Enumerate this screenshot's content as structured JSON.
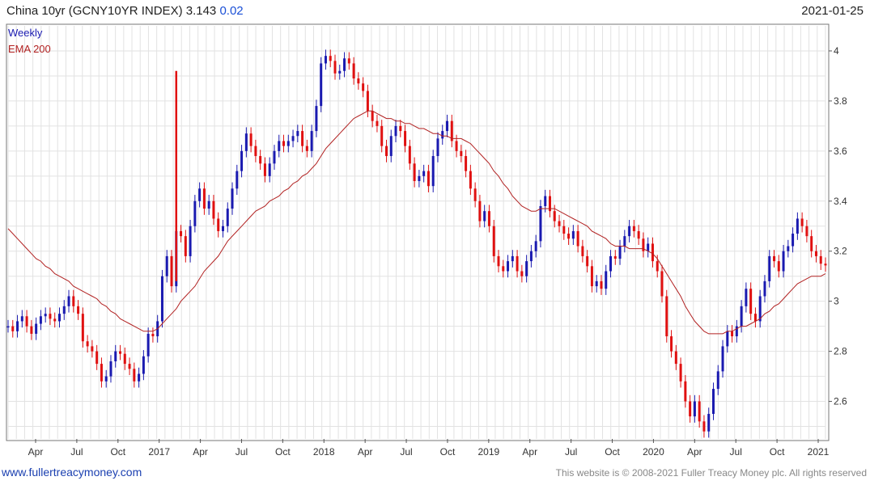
{
  "header": {
    "title": "China 10yr (GCNY10YR INDEX) 3.143",
    "change": "0.02",
    "date": "2021-01-25"
  },
  "footer": {
    "site": "www.fullertreacymoney.com",
    "copyright": "This website is © 2008-2021 Fuller Treacy Money plc. All rights reserved"
  },
  "colors": {
    "up": "#1a1ab0",
    "down": "#e01010",
    "ema": "#b22222",
    "grid": "#e2e2e2"
  },
  "chart_data": {
    "type": "line",
    "legend": [
      "Weekly",
      "EMA 200"
    ],
    "legend_placement": "top-left",
    "grid": true,
    "ylim": [
      2.45,
      4.1
    ],
    "y_ticks": [
      2.6,
      2.8,
      3,
      3.2,
      3.4,
      3.6,
      3.8,
      4
    ],
    "y_tick_labels": [
      "2.6",
      "2.8",
      "3",
      "3.2",
      "3.4",
      "3.6",
      "3.8",
      "4"
    ],
    "x_tick_labels": [
      "Apr",
      "Jul",
      "Oct",
      "2017",
      "Apr",
      "Jul",
      "Oct",
      "2018",
      "Apr",
      "Jul",
      "Oct",
      "2019",
      "Apr",
      "Jul",
      "Oct",
      "2020",
      "Apr",
      "Jul",
      "Oct",
      "2021"
    ],
    "series": [
      {
        "name": "Weekly",
        "y": [
          2.9,
          2.88,
          2.92,
          2.94,
          2.9,
          2.87,
          2.91,
          2.94,
          2.95,
          2.93,
          2.92,
          2.95,
          2.98,
          3.02,
          2.98,
          2.95,
          2.84,
          2.82,
          2.8,
          2.75,
          2.68,
          2.7,
          2.76,
          2.8,
          2.79,
          2.75,
          2.73,
          2.68,
          2.71,
          2.78,
          2.87,
          2.86,
          2.92,
          3.1,
          3.18,
          3.06,
          3.28,
          3.26,
          3.18,
          3.3,
          3.4,
          3.45,
          3.37,
          3.4,
          3.33,
          3.28,
          3.3,
          3.37,
          3.45,
          3.52,
          3.6,
          3.67,
          3.62,
          3.58,
          3.55,
          3.5,
          3.55,
          3.6,
          3.64,
          3.62,
          3.64,
          3.66,
          3.68,
          3.62,
          3.6,
          3.68,
          3.78,
          3.95,
          3.98,
          3.96,
          3.91,
          3.92,
          3.97,
          3.95,
          3.89,
          3.87,
          3.84,
          3.76,
          3.72,
          3.7,
          3.62,
          3.58,
          3.66,
          3.7,
          3.68,
          3.62,
          3.55,
          3.48,
          3.5,
          3.52,
          3.46,
          3.58,
          3.65,
          3.68,
          3.72,
          3.64,
          3.6,
          3.58,
          3.52,
          3.45,
          3.4,
          3.32,
          3.36,
          3.3,
          3.18,
          3.14,
          3.12,
          3.16,
          3.18,
          3.12,
          3.1,
          3.16,
          3.2,
          3.24,
          3.38,
          3.42,
          3.36,
          3.32,
          3.3,
          3.27,
          3.25,
          3.28,
          3.22,
          3.18,
          3.14,
          3.06,
          3.08,
          3.05,
          3.12,
          3.18,
          3.17,
          3.22,
          3.26,
          3.3,
          3.28,
          3.25,
          3.2,
          3.23,
          3.16,
          3.12,
          3.02,
          2.86,
          2.8,
          2.75,
          2.68,
          2.6,
          2.54,
          2.6,
          2.52,
          2.48,
          2.55,
          2.65,
          2.72,
          2.82,
          2.88,
          2.86,
          2.9,
          2.98,
          3.05,
          2.95,
          2.92,
          3.02,
          3.08,
          3.18,
          3.16,
          3.12,
          3.2,
          3.22,
          3.27,
          3.33,
          3.3,
          3.26,
          3.2,
          3.18,
          3.15,
          3.143
        ]
      },
      {
        "name": "EMA 200",
        "y": [
          3.29,
          3.27,
          3.25,
          3.23,
          3.21,
          3.19,
          3.17,
          3.16,
          3.14,
          3.13,
          3.11,
          3.1,
          3.09,
          3.08,
          3.06,
          3.05,
          3.04,
          3.03,
          3.02,
          3.01,
          2.99,
          2.98,
          2.96,
          2.95,
          2.93,
          2.92,
          2.91,
          2.9,
          2.89,
          2.88,
          2.88,
          2.88,
          2.89,
          2.91,
          2.93,
          2.95,
          2.97,
          3.0,
          3.02,
          3.04,
          3.06,
          3.09,
          3.12,
          3.14,
          3.16,
          3.18,
          3.21,
          3.24,
          3.26,
          3.28,
          3.3,
          3.32,
          3.34,
          3.36,
          3.37,
          3.38,
          3.4,
          3.41,
          3.42,
          3.44,
          3.45,
          3.47,
          3.48,
          3.5,
          3.51,
          3.53,
          3.55,
          3.58,
          3.61,
          3.63,
          3.65,
          3.67,
          3.69,
          3.71,
          3.73,
          3.74,
          3.75,
          3.76,
          3.76,
          3.75,
          3.74,
          3.73,
          3.73,
          3.72,
          3.72,
          3.71,
          3.71,
          3.7,
          3.69,
          3.69,
          3.68,
          3.67,
          3.67,
          3.66,
          3.66,
          3.65,
          3.65,
          3.65,
          3.64,
          3.63,
          3.61,
          3.59,
          3.57,
          3.55,
          3.52,
          3.5,
          3.47,
          3.45,
          3.42,
          3.4,
          3.38,
          3.37,
          3.36,
          3.36,
          3.37,
          3.37,
          3.37,
          3.37,
          3.36,
          3.35,
          3.34,
          3.33,
          3.32,
          3.31,
          3.3,
          3.28,
          3.27,
          3.26,
          3.25,
          3.23,
          3.22,
          3.22,
          3.22,
          3.21,
          3.21,
          3.21,
          3.21,
          3.2,
          3.19,
          3.17,
          3.14,
          3.11,
          3.08,
          3.05,
          3.02,
          2.98,
          2.95,
          2.92,
          2.9,
          2.88,
          2.87,
          2.87,
          2.87,
          2.87,
          2.88,
          2.88,
          2.89,
          2.9,
          2.9,
          2.91,
          2.92,
          2.93,
          2.95,
          2.96,
          2.98,
          2.99,
          3.01,
          3.03,
          3.05,
          3.07,
          3.08,
          3.09,
          3.1,
          3.1,
          3.1,
          3.11
        ]
      }
    ]
  }
}
